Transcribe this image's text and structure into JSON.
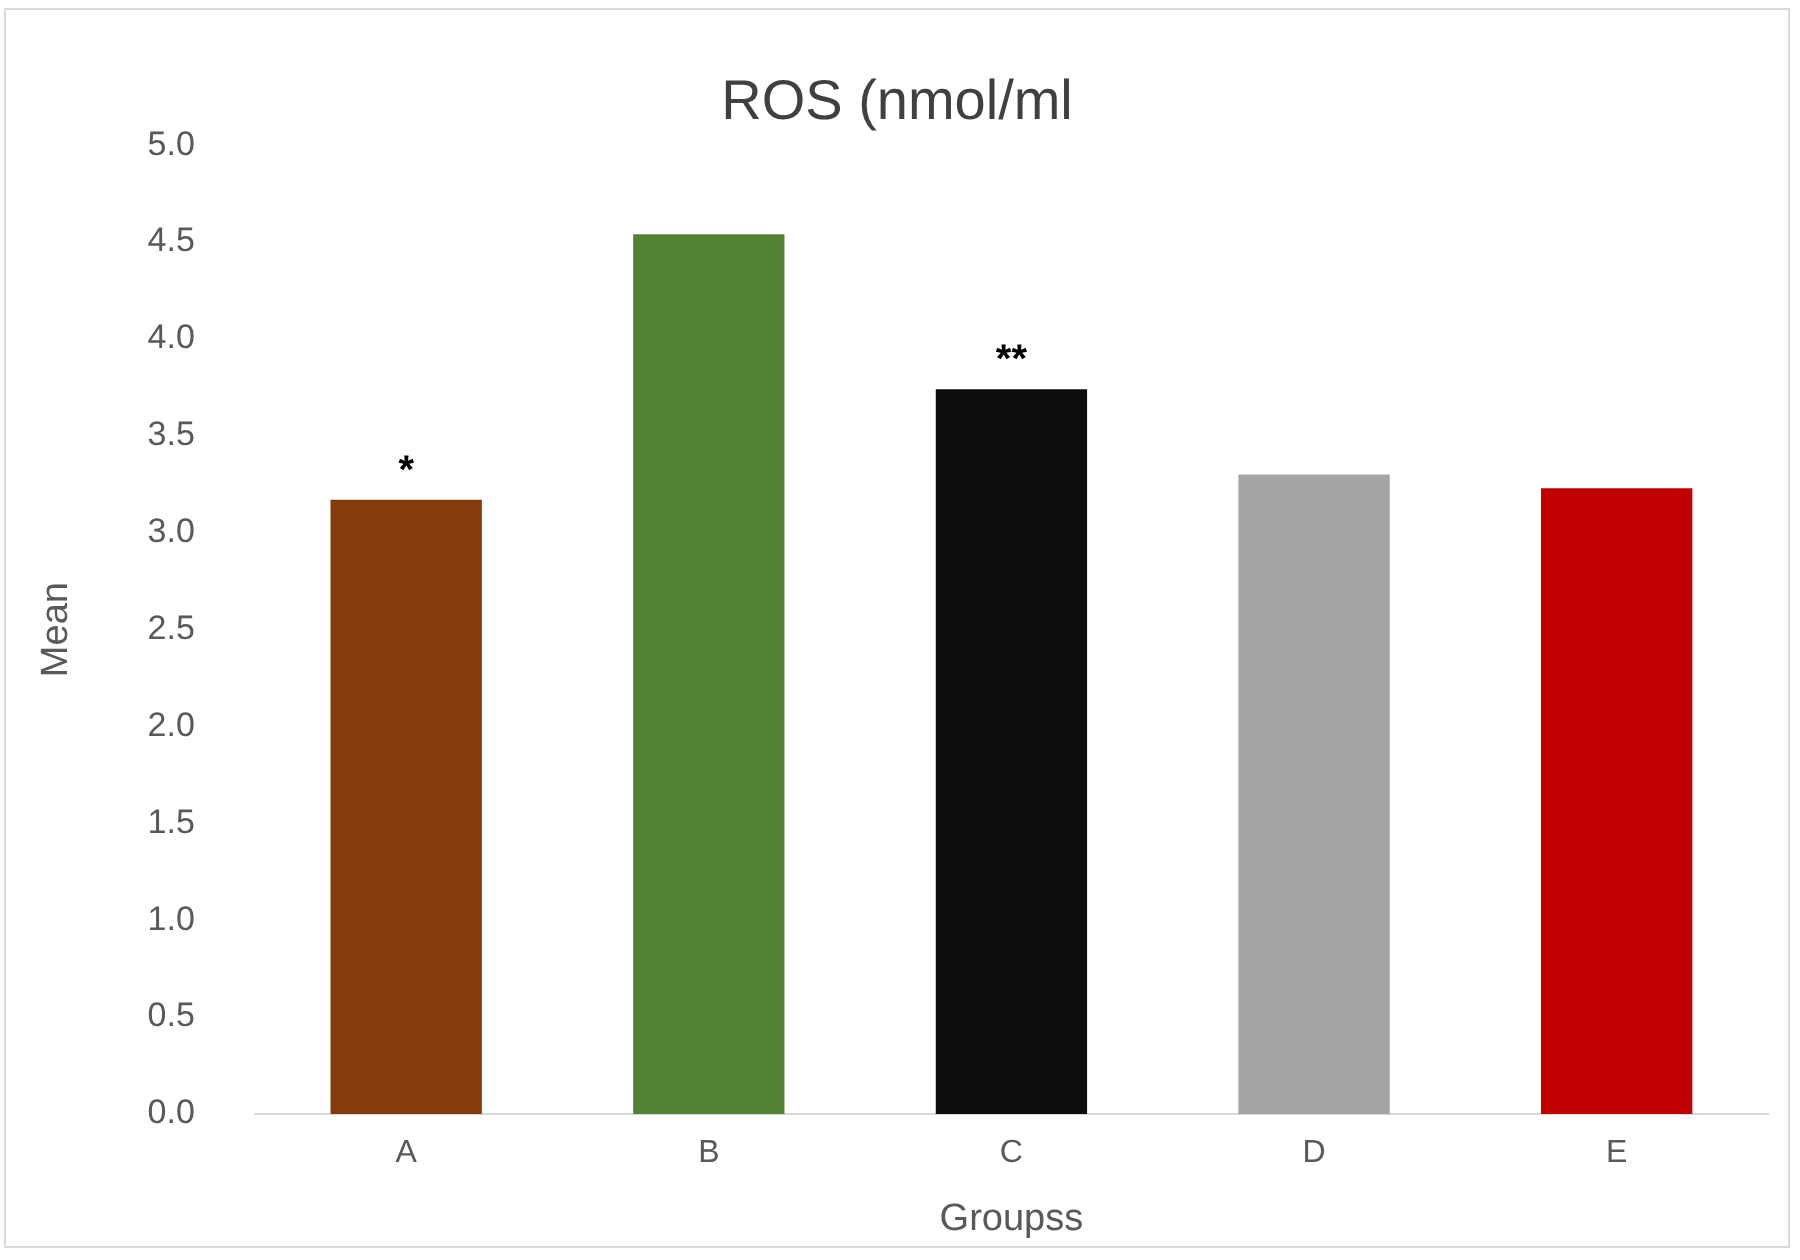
{
  "chart_data": {
    "type": "bar",
    "title": "ROS (nmol/ml",
    "xlabel": "Groupss",
    "ylabel": "Mean",
    "categories": [
      "A",
      "B",
      "C",
      "D",
      "E"
    ],
    "values": [
      3.17,
      4.54,
      3.74,
      3.3,
      3.23
    ],
    "colors": [
      "#843c0c",
      "#548235",
      "#0d0d0d",
      "#a5a5a5",
      "#c00000"
    ],
    "ylim": [
      0,
      5
    ],
    "yticks": [
      {
        "value": 0,
        "label": "0.0"
      },
      {
        "value": 0.5,
        "label": "0.5"
      },
      {
        "value": 1,
        "label": "1.0"
      },
      {
        "value": 1.5,
        "label": "1.5"
      },
      {
        "value": 2,
        "label": "2.0"
      },
      {
        "value": 2.5,
        "label": "2.5"
      },
      {
        "value": 3,
        "label": "3.0"
      },
      {
        "value": 3.5,
        "label": "3.5"
      },
      {
        "value": 4,
        "label": "4.0"
      },
      {
        "value": 4.5,
        "label": "4.5"
      },
      {
        "value": 5,
        "label": "5.0"
      }
    ],
    "annotations": [
      {
        "text": "*",
        "x": "A",
        "y": 3.17
      },
      {
        "text": "**",
        "x": "C",
        "y": 3.74
      }
    ],
    "grid": false,
    "legend": false
  }
}
